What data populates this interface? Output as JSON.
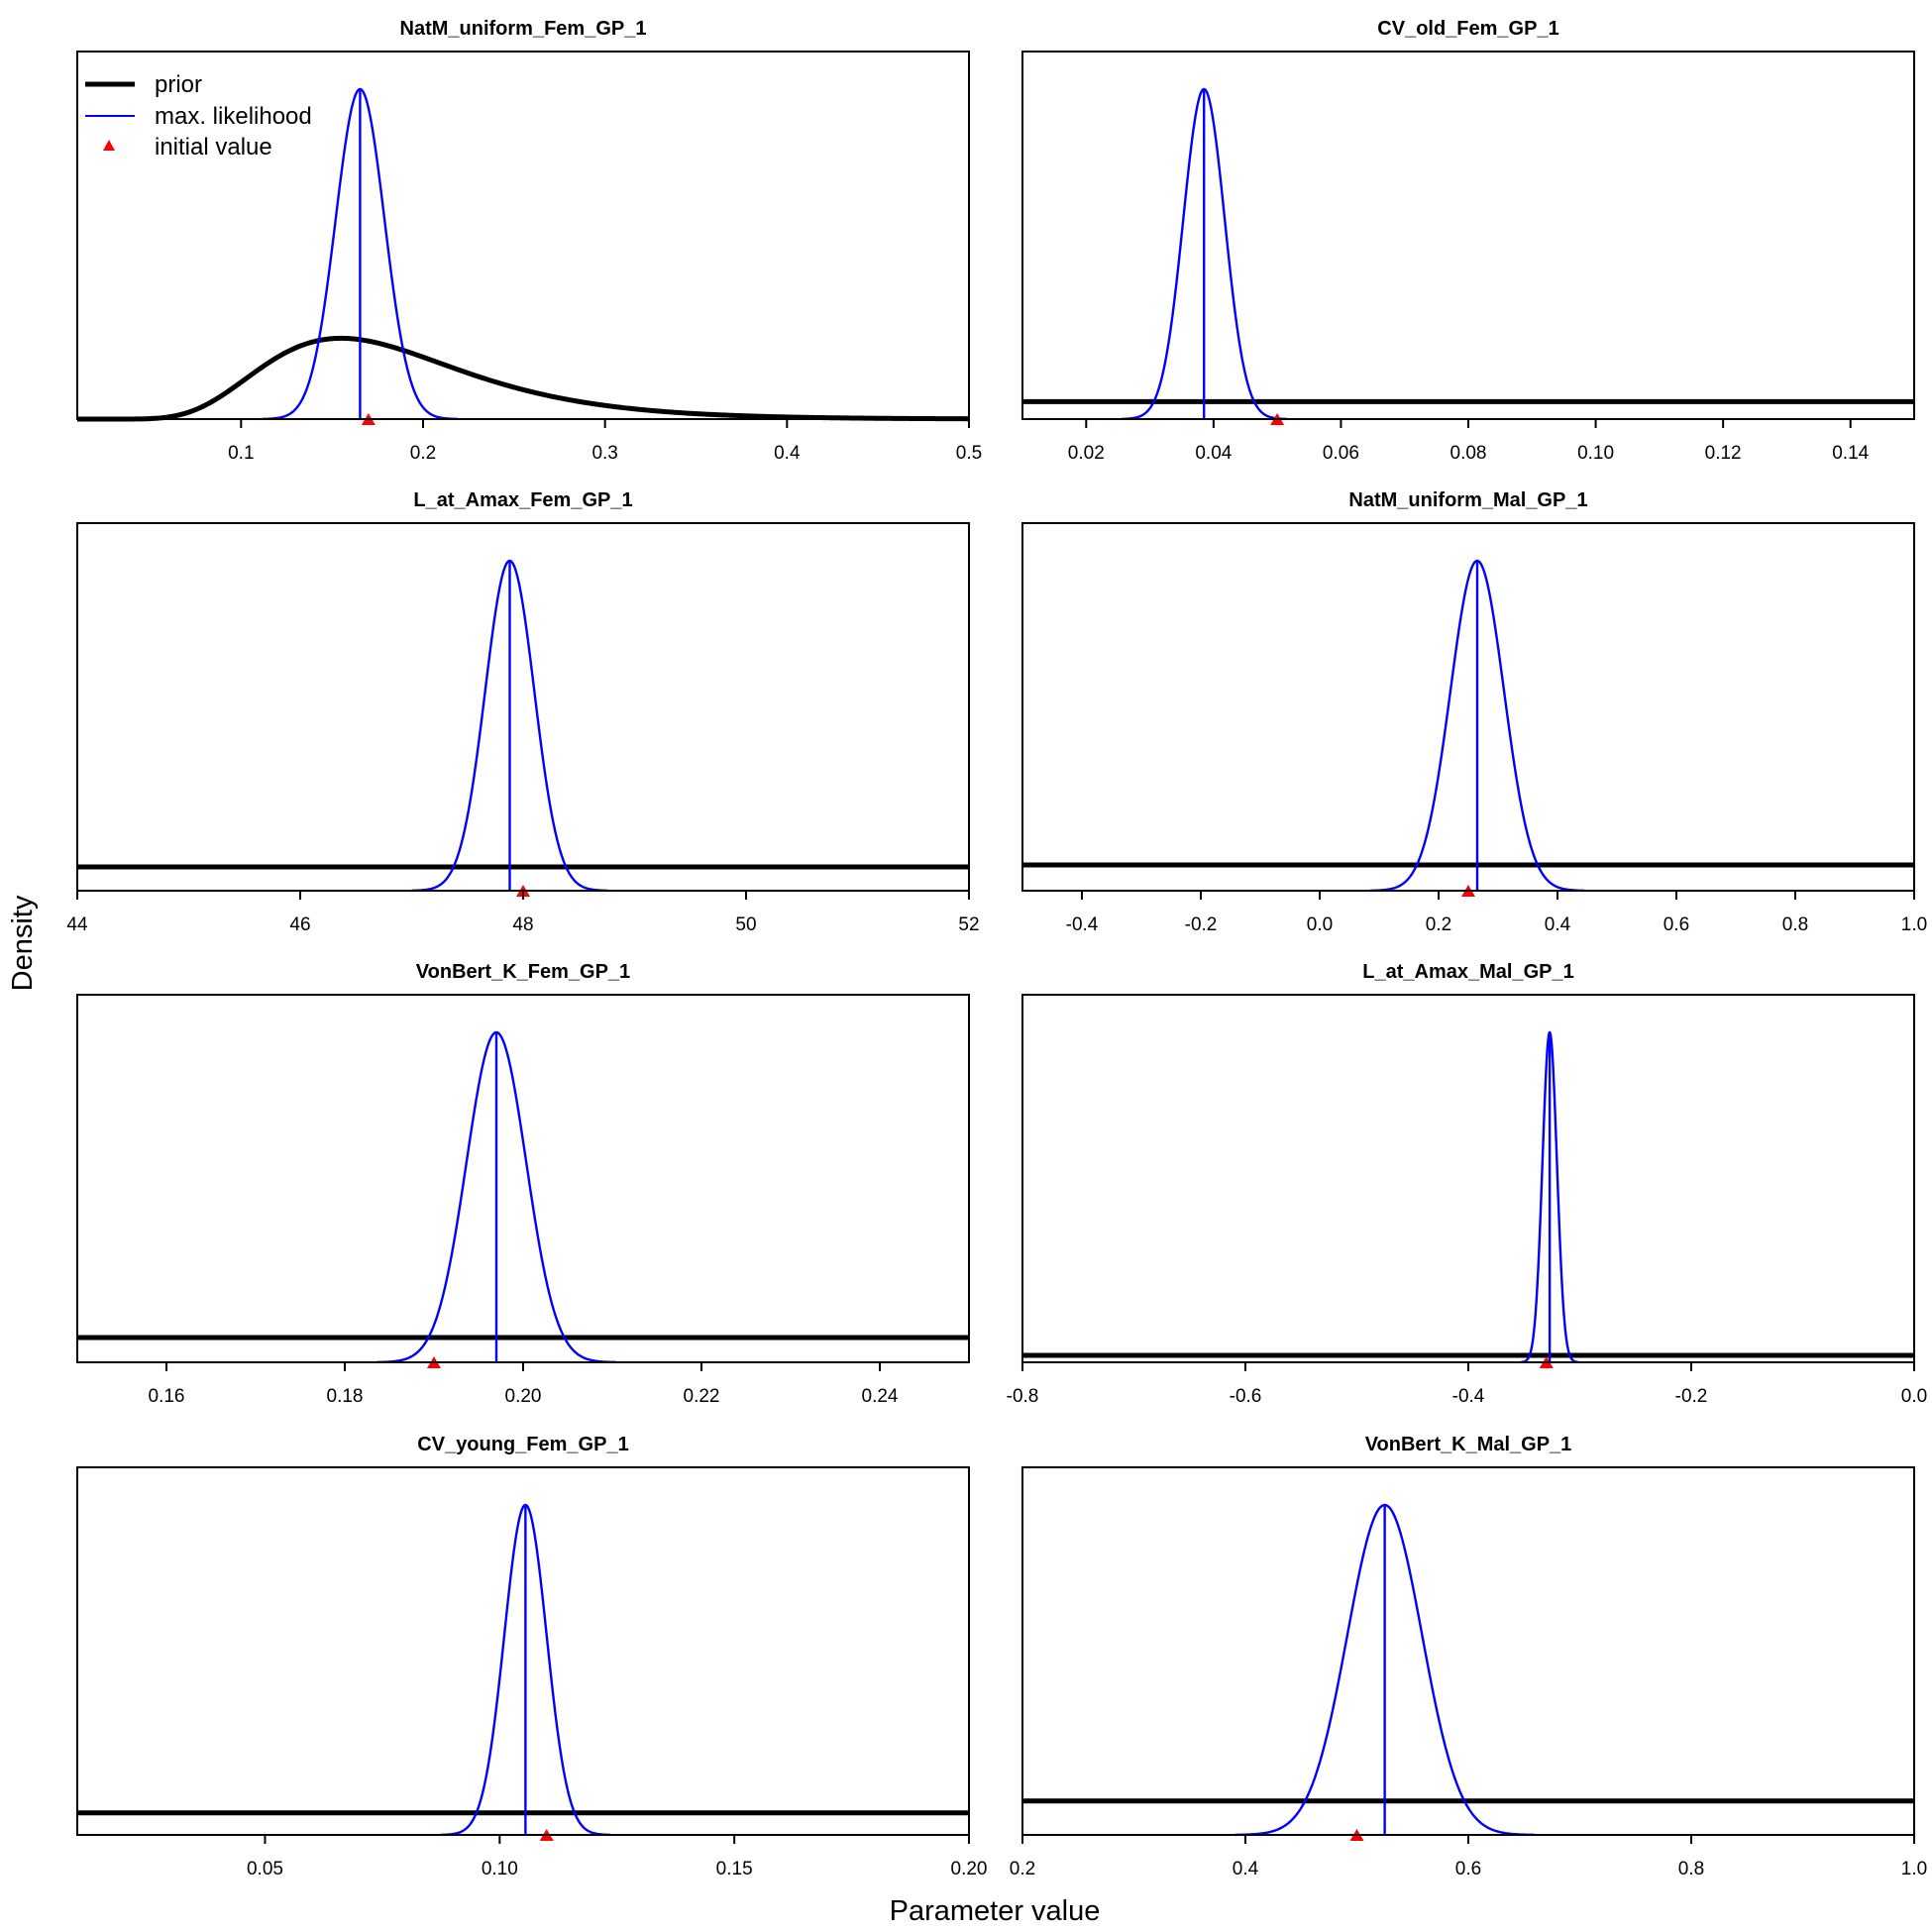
{
  "figure": {
    "xlabel": "Parameter value",
    "ylabel": "Density"
  },
  "legend": {
    "placement": "top-left of first panel",
    "entries": [
      {
        "label": "prior",
        "color": "#000000",
        "style": "thick-line"
      },
      {
        "label": "max. likelihood",
        "color": "#0000FF",
        "style": "thin-line"
      },
      {
        "label": "initial value",
        "color": "#FF0000",
        "style": "triangle"
      }
    ]
  },
  "colors": {
    "prior": "#000000",
    "mle": "#0000FF",
    "initial": "#FF0000"
  },
  "chart_data": [
    {
      "type": "line",
      "title": "NatM_uniform_Fem_GP_1",
      "xlim": [
        0.01,
        0.5
      ],
      "xticks": [
        0.1,
        0.2,
        0.3,
        0.4,
        0.5
      ],
      "tick_labels": [
        "0.1",
        "0.2",
        "0.3",
        "0.4",
        "0.5"
      ],
      "mle": 0.1654,
      "mle_sd": 0.0134,
      "initial": 0.17,
      "prior": {
        "type": "lognormal",
        "mode": 0.155,
        "sigma": 0.35
      },
      "prior_peak_ratio": 0.245
    },
    {
      "type": "line",
      "title": "CV_old_Fem_GP_1",
      "xlim": [
        0.01,
        0.15
      ],
      "xticks": [
        0.02,
        0.04,
        0.06,
        0.08,
        0.1,
        0.12,
        0.14
      ],
      "tick_labels": [
        "0.02",
        "0.04",
        "0.06",
        "0.08",
        "0.10",
        "0.12",
        "0.14"
      ],
      "mle": 0.0385,
      "mle_sd": 0.00325,
      "initial": 0.05,
      "prior": {
        "type": "flat",
        "level_ratio": 0.053
      }
    },
    {
      "type": "line",
      "title": "L_at_Amax_Fem_GP_1",
      "xlim": [
        44,
        52
      ],
      "xticks": [
        44,
        46,
        48,
        50,
        52
      ],
      "tick_labels": [
        "44",
        "46",
        "48",
        "50",
        "52"
      ],
      "mle": 47.88,
      "mle_sd": 0.22,
      "initial": 48.0,
      "prior": {
        "type": "flat",
        "level_ratio": 0.072
      }
    },
    {
      "type": "line",
      "title": "NatM_uniform_Mal_GP_1",
      "xlim": [
        -0.5,
        1.0
      ],
      "xticks": [
        -0.4,
        -0.2,
        0.0,
        0.2,
        0.4,
        0.6,
        0.8,
        1.0
      ],
      "tick_labels": [
        "-0.4",
        "-0.2",
        "0.0",
        "0.2",
        "0.4",
        "0.6",
        "0.8",
        "1.0"
      ],
      "mle": 0.265,
      "mle_sd": 0.045,
      "initial": 0.25,
      "prior": {
        "type": "flat",
        "level_ratio": 0.078
      }
    },
    {
      "type": "line",
      "title": "VonBert_K_Fem_GP_1",
      "xlim": [
        0.15,
        0.25
      ],
      "xticks": [
        0.16,
        0.18,
        0.2,
        0.22,
        0.24
      ],
      "tick_labels": [
        "0.16",
        "0.18",
        "0.20",
        "0.22",
        "0.24"
      ],
      "mle": 0.197,
      "mle_sd": 0.00335,
      "initial": 0.19,
      "prior": {
        "type": "flat",
        "level_ratio": 0.075
      }
    },
    {
      "type": "line",
      "title": "L_at_Amax_Mal_GP_1",
      "xlim": [
        -0.8,
        0.0
      ],
      "xticks": [
        -0.8,
        -0.6,
        -0.4,
        -0.2,
        0.0
      ],
      "tick_labels": [
        "-0.8",
        "-0.6",
        "-0.4",
        "-0.2",
        "0.0"
      ],
      "mle": -0.327,
      "mle_sd": 0.0065,
      "initial": -0.33,
      "prior": {
        "type": "flat",
        "level_ratio": 0.021
      }
    },
    {
      "type": "line",
      "title": "CV_young_Fem_GP_1",
      "xlim": [
        0.01,
        0.2
      ],
      "xticks": [
        0.05,
        0.1,
        0.15,
        0.2
      ],
      "tick_labels": [
        "0.05",
        "0.10",
        "0.15",
        "0.20"
      ],
      "mle": 0.1055,
      "mle_sd": 0.0045,
      "initial": 0.11,
      "prior": {
        "type": "flat",
        "level_ratio": 0.067
      }
    },
    {
      "type": "line",
      "title": "VonBert_K_Mal_GP_1",
      "xlim": [
        0.2,
        1.0
      ],
      "xticks": [
        0.2,
        0.4,
        0.6,
        0.8,
        1.0
      ],
      "tick_labels": [
        "0.2",
        "0.4",
        "0.6",
        "0.8",
        "1.0"
      ],
      "mle": 0.525,
      "mle_sd": 0.0335,
      "initial": 0.5,
      "prior": {
        "type": "flat",
        "level_ratio": 0.103
      }
    }
  ]
}
